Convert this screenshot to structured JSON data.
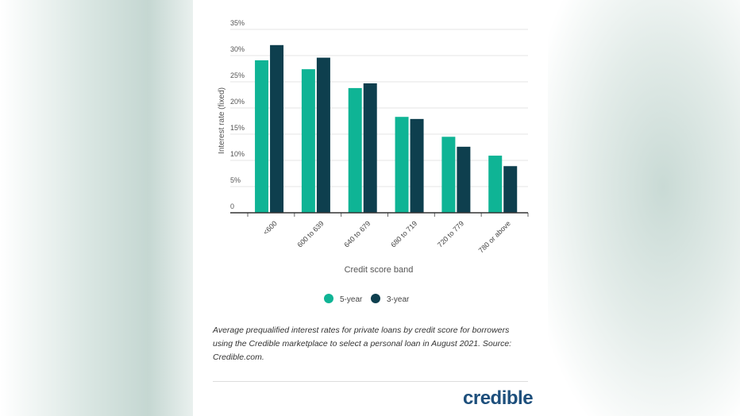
{
  "chart_data": {
    "type": "bar",
    "categories": [
      "<600",
      "600 to 639",
      "640 to 679",
      "680 to 719",
      "720 to 779",
      "780 or above"
    ],
    "series": [
      {
        "name": "5-year",
        "color": "#0fb495",
        "values": [
          29.1,
          27.4,
          23.8,
          18.3,
          14.5,
          10.9
        ]
      },
      {
        "name": "3-year",
        "color": "#0e3f4e",
        "values": [
          32.0,
          29.6,
          24.7,
          17.9,
          12.6,
          8.9
        ]
      }
    ],
    "xlabel": "Credit score band",
    "ylabel": "Interest rate (fixed)",
    "ylim": [
      0,
      35
    ],
    "yticks": [
      0,
      5,
      10,
      15,
      20,
      25,
      30,
      35
    ],
    "ytick_labels": [
      "0",
      "5%",
      "10%",
      "15%",
      "20%",
      "25%",
      "30%",
      "35%"
    ],
    "grid": true,
    "legend": "bottom"
  },
  "caption": "Average prequalified interest rates for private loans by credit score for borrowers using the Credible marketplace to select a personal loan in August 2021. Source: Credible.com.",
  "logo": "credible"
}
